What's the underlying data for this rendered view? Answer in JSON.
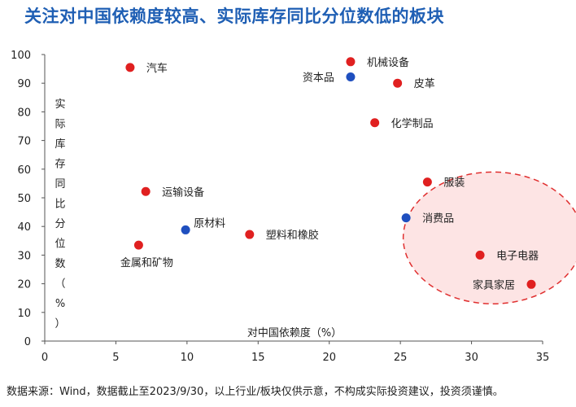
{
  "title": "关注对中国依赖度较高、实际库存同比分位数低的板块",
  "footnote": "数据来源：Wind，数据截止至2023/9/30，以上行业/板块仅供示意，不构成实际投资建议，投资须谨慎。",
  "colors": {
    "industry": "#e02020",
    "sector": "#1f4fbf",
    "highlight_fill": "#fde4e4",
    "highlight_stroke": "#e03030",
    "title": "#1f5fb4"
  },
  "chart_data": {
    "type": "scatter",
    "xlabel": "对中国依赖度（%）",
    "ylabel": "实际库存同比分位数（%）",
    "xlim": [
      0,
      35
    ],
    "ylim": [
      0,
      100
    ],
    "xticks": [
      0,
      5,
      10,
      15,
      20,
      25,
      30,
      35
    ],
    "yticks": [
      0,
      10,
      20,
      30,
      40,
      50,
      60,
      70,
      80,
      90,
      100
    ],
    "grid": false,
    "points": [
      {
        "label": "汽车",
        "x": 6.0,
        "y": 95.5,
        "color": "#e02020",
        "label_pos": "right"
      },
      {
        "label": "机械设备",
        "x": 21.5,
        "y": 97.5,
        "color": "#e02020",
        "label_pos": "right"
      },
      {
        "label": "资本品",
        "x": 21.5,
        "y": 92.2,
        "color": "#1f4fbf",
        "label_pos": "left"
      },
      {
        "label": "皮革",
        "x": 24.8,
        "y": 90.0,
        "color": "#e02020",
        "label_pos": "right"
      },
      {
        "label": "化学制品",
        "x": 23.2,
        "y": 76.2,
        "color": "#e02020",
        "label_pos": "right"
      },
      {
        "label": "服装",
        "x": 26.9,
        "y": 55.5,
        "color": "#e02020",
        "label_pos": "right"
      },
      {
        "label": "运输设备",
        "x": 7.1,
        "y": 52.2,
        "color": "#e02020",
        "label_pos": "right"
      },
      {
        "label": "消费品",
        "x": 25.4,
        "y": 43.0,
        "color": "#1f4fbf",
        "label_pos": "right"
      },
      {
        "label": "原材料",
        "x": 9.9,
        "y": 38.8,
        "color": "#1f4fbf",
        "label_pos": "upright"
      },
      {
        "label": "塑料和橡胶",
        "x": 14.4,
        "y": 37.2,
        "color": "#e02020",
        "label_pos": "right"
      },
      {
        "label": "金属和矿物",
        "x": 6.6,
        "y": 33.5,
        "color": "#e02020",
        "label_pos": "below"
      },
      {
        "label": "电子电器",
        "x": 30.6,
        "y": 30.0,
        "color": "#e02020",
        "label_pos": "right"
      },
      {
        "label": "家具家居",
        "x": 34.2,
        "y": 19.8,
        "color": "#e02020",
        "label_pos": "left"
      }
    ],
    "highlight_region": {
      "center": [
        31.5,
        36
      ],
      "radius_x": 6.3,
      "radius_y": 23
    }
  }
}
